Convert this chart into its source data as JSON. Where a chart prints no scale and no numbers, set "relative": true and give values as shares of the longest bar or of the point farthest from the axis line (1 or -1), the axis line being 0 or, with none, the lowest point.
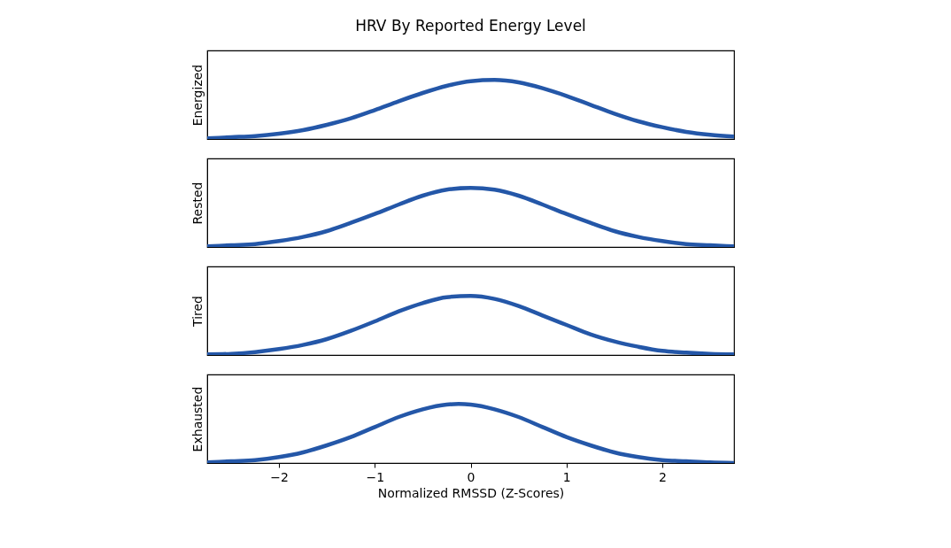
{
  "chart_data": [
    {
      "type": "line",
      "title": "HRV By Reported Energy Level",
      "ylabel": "Energized",
      "relative": true,
      "tick_labels": false,
      "xlim": [
        -2.75,
        2.75
      ],
      "x": [
        -2.75,
        -2.5,
        -2.25,
        -2.0,
        -1.75,
        -1.5,
        -1.25,
        -1.0,
        -0.75,
        -0.5,
        -0.25,
        0,
        0.25,
        0.5,
        0.75,
        1.0,
        1.25,
        1.5,
        1.75,
        2.0,
        2.25,
        2.5,
        2.75
      ],
      "series": [
        {
          "color": "#2457a8",
          "values": [
            0.01,
            0.03,
            0.05,
            0.09,
            0.15,
            0.24,
            0.35,
            0.49,
            0.64,
            0.78,
            0.9,
            0.98,
            1.0,
            0.96,
            0.86,
            0.73,
            0.58,
            0.43,
            0.3,
            0.2,
            0.12,
            0.07,
            0.04
          ]
        }
      ]
    },
    {
      "type": "line",
      "ylabel": "Rested",
      "relative": true,
      "tick_labels": false,
      "xlim": [
        -2.75,
        2.75
      ],
      "x": [
        -2.75,
        -2.5,
        -2.25,
        -2.0,
        -1.75,
        -1.5,
        -1.25,
        -1.0,
        -0.75,
        -0.5,
        -0.25,
        0,
        0.25,
        0.5,
        0.75,
        1.0,
        1.25,
        1.5,
        1.75,
        2.0,
        2.25,
        2.5,
        2.75
      ],
      "series": [
        {
          "color": "#2457a8",
          "values": [
            0.01,
            0.03,
            0.05,
            0.1,
            0.17,
            0.27,
            0.41,
            0.56,
            0.72,
            0.87,
            0.97,
            1.0,
            0.97,
            0.87,
            0.72,
            0.56,
            0.41,
            0.27,
            0.17,
            0.1,
            0.05,
            0.03,
            0.01
          ]
        }
      ]
    },
    {
      "type": "line",
      "ylabel": "Tired",
      "relative": true,
      "tick_labels": false,
      "xlim": [
        -2.75,
        2.75
      ],
      "x": [
        -2.75,
        -2.5,
        -2.25,
        -2.0,
        -1.75,
        -1.5,
        -1.25,
        -1.0,
        -0.75,
        -0.5,
        -0.25,
        0,
        0.25,
        0.5,
        0.75,
        1.0,
        1.25,
        1.5,
        1.75,
        2.0,
        2.25,
        2.5,
        2.75
      ],
      "series": [
        {
          "color": "#2457a8",
          "values": [
            0.01,
            0.02,
            0.05,
            0.1,
            0.17,
            0.27,
            0.41,
            0.57,
            0.74,
            0.88,
            0.98,
            1.0,
            0.95,
            0.83,
            0.67,
            0.51,
            0.35,
            0.23,
            0.14,
            0.07,
            0.04,
            0.02,
            0.01
          ]
        }
      ]
    },
    {
      "type": "line",
      "ylabel": "Exhausted",
      "xlabel": "Normalized RMSSD (Z-Scores)",
      "relative": true,
      "tick_labels": "x",
      "xlim": [
        -2.75,
        2.75
      ],
      "xticks": [
        {
          "value": -2,
          "label": "−2"
        },
        {
          "value": -1,
          "label": "−1"
        },
        0,
        1,
        2
      ],
      "x": [
        -2.75,
        -2.5,
        -2.25,
        -2.0,
        -1.75,
        -1.5,
        -1.25,
        -1.0,
        -0.75,
        -0.5,
        -0.25,
        -0.125,
        0,
        0.25,
        0.5,
        0.75,
        1.0,
        1.25,
        1.5,
        1.75,
        2.0,
        2.25,
        2.5,
        2.75
      ],
      "series": [
        {
          "color": "#2457a8",
          "values": [
            0.01,
            0.03,
            0.05,
            0.1,
            0.18,
            0.3,
            0.44,
            0.61,
            0.78,
            0.91,
            0.99,
            1.0,
            0.99,
            0.91,
            0.78,
            0.61,
            0.44,
            0.3,
            0.18,
            0.1,
            0.05,
            0.03,
            0.01,
            0.0
          ]
        }
      ]
    }
  ]
}
